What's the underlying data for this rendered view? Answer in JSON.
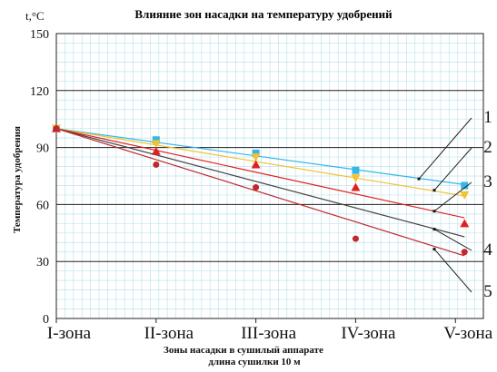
{
  "chart_data": {
    "type": "line",
    "title": "Влияние зон насадки на температуру  удобрений",
    "y_unit": "t,°C",
    "ylabel": "Температура удобрения",
    "xlabel_line1": "Зоны насадки в сушилый аппарате",
    "xlabel_line2": "длина сушилки 10 м",
    "categories": [
      "I-зона",
      "II-зона",
      "III-зона",
      "IV-зона",
      "V-зона"
    ],
    "ylim": [
      0,
      150
    ],
    "yticks": [
      "0",
      "30",
      "60",
      "90",
      "120",
      "150"
    ],
    "grid": true,
    "series": [
      {
        "name": "1",
        "color": "#35b6e8",
        "marker": "square",
        "points": [
          100,
          94,
          87,
          78,
          70
        ],
        "trend": [
          100,
          70.5
        ]
      },
      {
        "name": "2",
        "color": "#f2c230",
        "marker": "triangle-down",
        "points": [
          100,
          92,
          85,
          74,
          65
        ],
        "trend": [
          100,
          64.5
        ]
      },
      {
        "name": "3",
        "color": "#e02020",
        "marker": "triangle",
        "points": [
          100,
          88,
          81,
          69,
          50
        ],
        "trend": [
          100,
          53
        ]
      },
      {
        "name": "4",
        "color": "#444444",
        "marker": "none",
        "points": [],
        "trend": [
          100,
          43
        ]
      },
      {
        "name": "5",
        "color": "#c0282c",
        "marker": "circle",
        "points": [
          100,
          81,
          69,
          42,
          35
        ],
        "trend": [
          100,
          33
        ]
      }
    ],
    "callouts": [
      "1",
      "2",
      "3",
      "4",
      "5"
    ]
  }
}
